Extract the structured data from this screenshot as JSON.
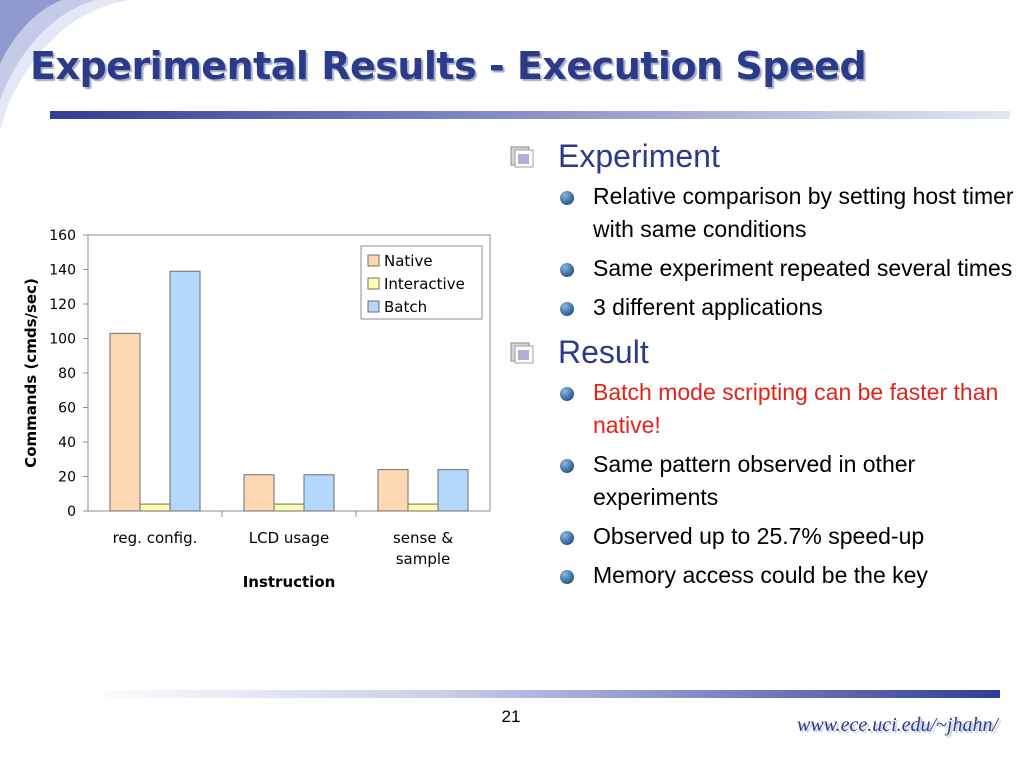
{
  "slide": {
    "title": "Experimental Results - Execution Speed",
    "page_number": "21",
    "footer_url": "www.ece.uci.edu/~jhahn/"
  },
  "sections": [
    {
      "heading": "Experiment",
      "items": [
        {
          "text": "Relative comparison by setting host timer with same conditions",
          "color": "#000000"
        },
        {
          "text": "Same experiment repeated several times",
          "color": "#000000"
        },
        {
          "text": "3 different applications",
          "color": "#000000"
        }
      ]
    },
    {
      "heading": "Result",
      "items": [
        {
          "text": "Batch mode scripting can be faster than native!",
          "color": "#e2231a"
        },
        {
          "text": "Same pattern observed in other experiments",
          "color": "#000000"
        },
        {
          "text": "Observed up to 25.7% speed-up",
          "color": "#000000"
        },
        {
          "text": "Memory access could be the key",
          "color": "#000000"
        }
      ]
    }
  ],
  "chart_data": {
    "type": "bar",
    "categories": [
      [
        "reg. config."
      ],
      [
        "LCD usage"
      ],
      [
        "sense &",
        "sample"
      ]
    ],
    "series": [
      {
        "name": "Native",
        "values": [
          103,
          21,
          24
        ],
        "color": "#fdd8b2"
      },
      {
        "name": "Interactive",
        "values": [
          4,
          4,
          4
        ],
        "color": "#ffffb0"
      },
      {
        "name": "Batch",
        "values": [
          139,
          21,
          24
        ],
        "color": "#b3d8fc"
      }
    ],
    "xlabel": "Instruction",
    "ylabel": "Commands (cmds/sec)",
    "ylim": [
      0,
      160
    ],
    "yticks": [
      "0",
      "20",
      "40",
      "60",
      "80",
      "100",
      "120",
      "140",
      "160"
    ],
    "grid": false,
    "legend_position": "top-right"
  },
  "icons": {
    "section_bullet": "square-bullet-icon",
    "item_bullet": "round-blue-bullet-icon"
  }
}
